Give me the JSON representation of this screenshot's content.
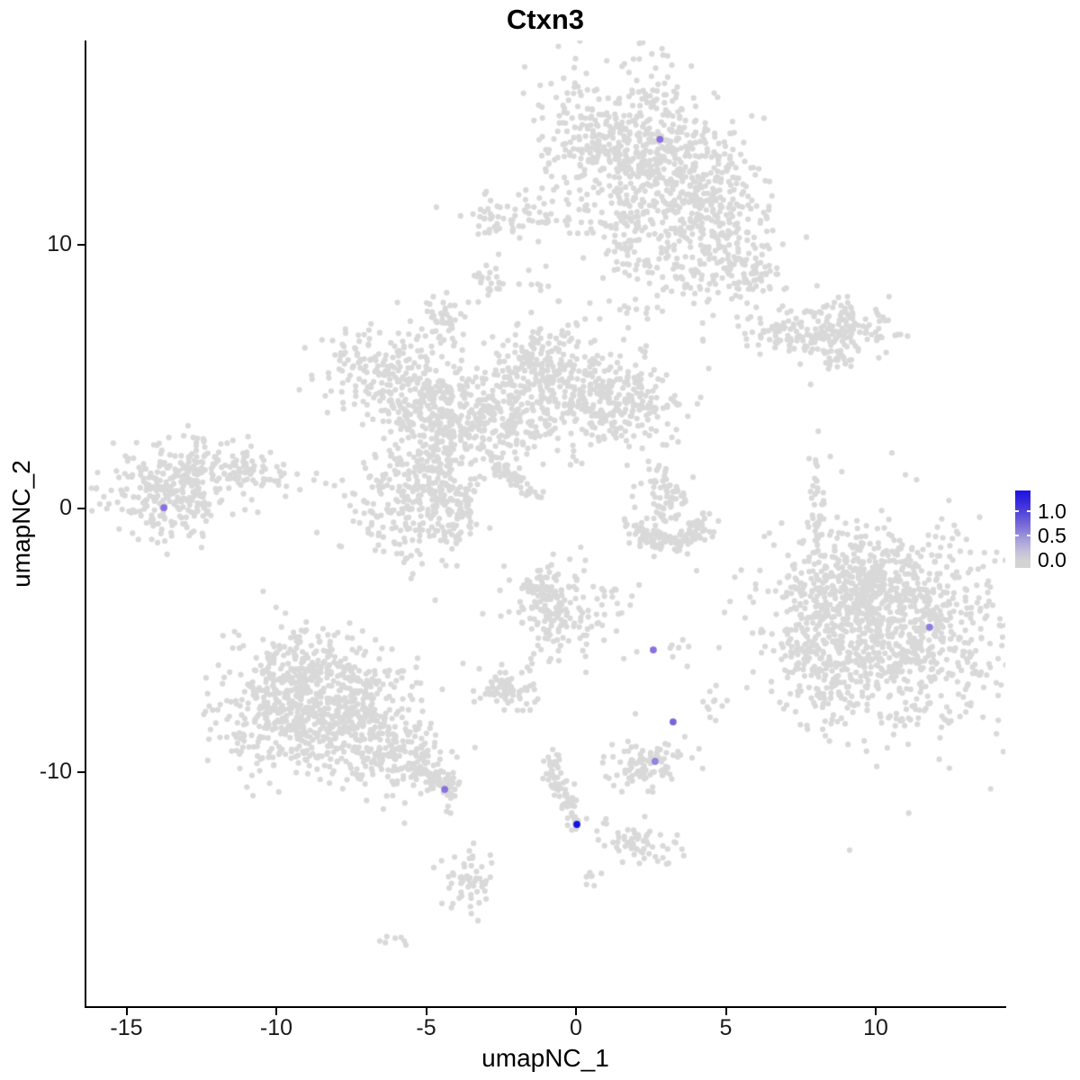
{
  "title": "Ctxn3",
  "axes": {
    "x": {
      "label": "umapNC_1",
      "ticks": [
        -15,
        -10,
        -5,
        0,
        5,
        10
      ]
    },
    "y": {
      "label": "umapNC_2",
      "ticks": [
        10,
        0,
        -10
      ]
    }
  },
  "legend": {
    "labels": [
      "1.0",
      "0.5",
      "0.0"
    ],
    "high_color": "#1d12e3",
    "low_color": "#d3d3d3"
  },
  "colors": {
    "background_point": "#d9d9d9",
    "axis": "#000000"
  },
  "chart_data": {
    "type": "scatter",
    "title": "Ctxn3",
    "xlabel": "umapNC_1",
    "ylabel": "umapNC_2",
    "xlim": [
      -16.3,
      14.3
    ],
    "ylim": [
      -18.8,
      17.8
    ],
    "x_ticks": [
      -15,
      -10,
      -5,
      0,
      5,
      10
    ],
    "y_ticks": [
      10,
      0,
      -10
    ],
    "grid": false,
    "legend_position": "right",
    "legend_scale": {
      "min": 0.0,
      "max": 1.2,
      "breaks": [
        1.0,
        0.5,
        0.0
      ]
    },
    "point_radius_px": 3.1,
    "seed": 7,
    "background_clusters": [
      {
        "type": "gauss",
        "cx": 1.5,
        "cy": 14.0,
        "sx": 1.25,
        "sy": 1.5,
        "n": 420
      },
      {
        "type": "gauss",
        "cx": 3.45,
        "cy": 12.95,
        "sx": 1.0,
        "sy": 1.2,
        "n": 260
      },
      {
        "type": "gauss",
        "cx": 4.65,
        "cy": 11.25,
        "sx": 0.9,
        "sy": 1.05,
        "n": 160
      },
      {
        "type": "gauss",
        "cx": 1.8,
        "cy": 10.25,
        "sx": 0.5,
        "sy": 1.25,
        "n": 90
      },
      {
        "type": "gauss",
        "cx": -1.8,
        "cy": 11.1,
        "sx": 1.15,
        "sy": 0.5,
        "n": 80
      },
      {
        "type": "gauss",
        "cx": 3.15,
        "cy": 9.2,
        "sx": 0.5,
        "sy": 0.8,
        "n": 50
      },
      {
        "type": "gauss",
        "cx": 4.95,
        "cy": 9.4,
        "sx": 0.8,
        "sy": 0.85,
        "n": 90
      },
      {
        "type": "gauss",
        "cx": 5.95,
        "cy": 8.85,
        "sx": 0.45,
        "sy": 0.5,
        "n": 40
      },
      {
        "type": "gauss",
        "cx": -2.9,
        "cy": 8.6,
        "sx": 0.35,
        "sy": 0.3,
        "n": 25
      },
      {
        "type": "gauss",
        "cx": 7.2,
        "cy": 6.65,
        "sx": 1.0,
        "sy": 0.4,
        "n": 85
      },
      {
        "type": "gauss",
        "cx": 9.05,
        "cy": 6.9,
        "sx": 0.95,
        "sy": 0.55,
        "n": 130
      },
      {
        "type": "gauss",
        "cx": 8.65,
        "cy": 5.8,
        "sx": 0.35,
        "sy": 0.22,
        "n": 18
      },
      {
        "type": "gauss",
        "cx": -4.55,
        "cy": 7.2,
        "sx": 0.35,
        "sy": 0.42,
        "n": 45
      },
      {
        "type": "gauss",
        "cx": -6.6,
        "cy": 5.2,
        "sx": 1.05,
        "sy": 0.85,
        "n": 170
      },
      {
        "type": "gauss",
        "cx": -5.35,
        "cy": 4.0,
        "sx": 0.7,
        "sy": 0.5,
        "n": 70
      },
      {
        "type": "gauss",
        "cx": -3.75,
        "cy": 3.5,
        "sx": 1.2,
        "sy": 1.1,
        "n": 240
      },
      {
        "type": "gauss",
        "cx": -1.05,
        "cy": 4.6,
        "sx": 1.35,
        "sy": 1.1,
        "n": 280
      },
      {
        "type": "gauss",
        "cx": 1.5,
        "cy": 4.1,
        "sx": 1.05,
        "sy": 0.9,
        "n": 220
      },
      {
        "type": "gauss",
        "cx": -1.2,
        "cy": 5.8,
        "sx": 0.5,
        "sy": 0.55,
        "n": 60
      },
      {
        "type": "gauss",
        "cx": -4.55,
        "cy": 2.55,
        "sx": 0.42,
        "sy": 1.0,
        "n": 80
      },
      {
        "type": "gauss",
        "cx": -5.4,
        "cy": 0.35,
        "sx": 1.05,
        "sy": 1.2,
        "n": 260
      },
      {
        "type": "gauss",
        "cx": -4.05,
        "cy": 0.15,
        "sx": 0.6,
        "sy": 0.8,
        "n": 80
      },
      {
        "type": "gauss",
        "cx": -2.4,
        "cy": 2.9,
        "sx": 0.8,
        "sy": 0.7,
        "n": 60
      },
      {
        "type": "gauss",
        "cx": -1.35,
        "cy": 8.35,
        "sx": 0.3,
        "sy": 0.55,
        "n": 10
      },
      {
        "type": "gauss",
        "cx": 0.0,
        "cy": 7.0,
        "sx": 0.55,
        "sy": 0.6,
        "n": 8
      },
      {
        "type": "gauss",
        "cx": -13.5,
        "cy": 0.6,
        "sx": 1.1,
        "sy": 0.85,
        "n": 260
      },
      {
        "type": "gauss",
        "cx": -11.85,
        "cy": 1.6,
        "sx": 0.9,
        "sy": 0.5,
        "n": 90
      },
      {
        "type": "gauss",
        "cx": -10.5,
        "cy": 1.25,
        "sx": 0.6,
        "sy": 0.3,
        "n": 25
      },
      {
        "type": "gauss",
        "cx": -9.65,
        "cy": 0.85,
        "sx": 0.55,
        "sy": 0.5,
        "n": 8
      },
      {
        "type": "gauss",
        "cx": 3.05,
        "cy": 0.45,
        "sx": 0.5,
        "sy": 0.55,
        "n": 70
      },
      {
        "type": "gauss",
        "cx": 8.05,
        "cy": 0.0,
        "sx": 0.14,
        "sy": 1.05,
        "n": 45
      },
      {
        "type": "gauss",
        "cx": 10.65,
        "cy": -4.45,
        "sx": 1.9,
        "sy": 1.85,
        "n": 950
      },
      {
        "type": "gauss",
        "cx": 8.55,
        "cy": -5.1,
        "sx": 0.8,
        "sy": 1.6,
        "n": 160
      },
      {
        "type": "gauss",
        "cx": 9.6,
        "cy": -2.9,
        "sx": 1.3,
        "sy": 0.8,
        "n": 180
      },
      {
        "type": "gauss",
        "cx": 7.65,
        "cy": -4.6,
        "sx": 0.5,
        "sy": 1.5,
        "n": 40
      },
      {
        "type": "gauss",
        "cx": -9.0,
        "cy": -6.3,
        "sx": 1.2,
        "sy": 1.0,
        "n": 280
      },
      {
        "type": "gauss",
        "cx": -9.6,
        "cy": -8.2,
        "sx": 1.2,
        "sy": 1.0,
        "n": 260
      },
      {
        "type": "gauss",
        "cx": -7.8,
        "cy": -7.5,
        "sx": 1.3,
        "sy": 1.1,
        "n": 260
      },
      {
        "type": "gauss",
        "cx": -6.45,
        "cy": -9.0,
        "sx": 1.1,
        "sy": 0.8,
        "n": 180
      },
      {
        "type": "gauss",
        "cx": -0.45,
        "cy": -3.9,
        "sx": 1.0,
        "sy": 0.9,
        "n": 170
      },
      {
        "type": "gauss",
        "cx": -1.2,
        "cy": -3.05,
        "sx": 0.4,
        "sy": 0.4,
        "n": 40
      },
      {
        "type": "gauss",
        "cx": -2.45,
        "cy": -6.85,
        "sx": 0.55,
        "sy": 0.4,
        "n": 70
      },
      {
        "type": "gauss",
        "cx": 2.35,
        "cy": -9.65,
        "sx": 0.7,
        "sy": 0.45,
        "n": 90
      },
      {
        "type": "gauss",
        "cx": 2.1,
        "cy": -12.7,
        "sx": 0.55,
        "sy": 0.35,
        "n": 60
      },
      {
        "type": "gauss",
        "cx": -3.6,
        "cy": -14.2,
        "sx": 0.45,
        "sy": 0.6,
        "n": 55
      },
      {
        "type": "gauss",
        "cx": 0.55,
        "cy": -14.2,
        "sx": 0.15,
        "sy": 0.3,
        "n": 8
      },
      {
        "type": "gauss",
        "cx": -6.05,
        "cy": -16.3,
        "sx": 0.3,
        "sy": 0.15,
        "n": 7
      },
      {
        "type": "gauss",
        "cx": 4.8,
        "cy": -7.35,
        "sx": 0.3,
        "sy": 0.3,
        "n": 10
      },
      {
        "type": "gauss",
        "cx": 3.3,
        "cy": -5.3,
        "sx": 0.4,
        "sy": 0.22,
        "n": 6
      },
      {
        "type": "gauss",
        "cx": 0.65,
        "cy": -12.05,
        "sx": 0.35,
        "sy": 0.12,
        "n": 6
      },
      {
        "type": "gauss",
        "cx": 3.99,
        "cy": -2.3,
        "sx": 0.05,
        "sy": 0.05,
        "n": 1
      },
      {
        "type": "gauss",
        "cx": 7.8,
        "cy": 4.65,
        "sx": 0.05,
        "sy": 0.05,
        "n": 1
      },
      {
        "type": "gauss",
        "cx": -4.15,
        "cy": -11.6,
        "sx": 0.15,
        "sy": 0.1,
        "n": 3
      },
      {
        "type": "path",
        "pts": [
          [
            1.8,
            -0.5
          ],
          [
            2.4,
            -1.15
          ],
          [
            3.2,
            -1.3
          ],
          [
            4.0,
            -0.95
          ],
          [
            4.35,
            -0.6
          ]
        ],
        "n": 120,
        "w": 0.22
      },
      {
        "type": "path",
        "pts": [
          [
            -2.8,
            1.8
          ],
          [
            -1.25,
            0.35
          ]
        ],
        "n": 55,
        "w": 0.13
      },
      {
        "type": "path",
        "pts": [
          [
            -5.6,
            -9.6
          ],
          [
            -4.6,
            -10.35
          ],
          [
            -4.05,
            -10.65
          ]
        ],
        "n": 100,
        "w": 0.28
      },
      {
        "type": "path",
        "pts": [
          [
            -0.85,
            -9.3
          ],
          [
            -0.6,
            -10.3
          ],
          [
            -0.2,
            -11.3
          ],
          [
            0.05,
            -12.0
          ]
        ],
        "n": 70,
        "w": 0.16
      }
    ],
    "highlighted_points": [
      {
        "x": 2.8,
        "y": 14.0,
        "value": 0.6,
        "color": "#8a6fdf"
      },
      {
        "x": -13.75,
        "y": 0.03,
        "value": 0.6,
        "color": "#8a6fdf"
      },
      {
        "x": 11.8,
        "y": -4.5,
        "value": 0.55,
        "color": "#8f7ce2"
      },
      {
        "x": 2.58,
        "y": -5.36,
        "value": 0.6,
        "color": "#8a6fdf"
      },
      {
        "x": 3.24,
        "y": -8.09,
        "value": 0.65,
        "color": "#7d63dc"
      },
      {
        "x": 2.64,
        "y": -9.59,
        "value": 0.5,
        "color": "#9383de"
      },
      {
        "x": -4.38,
        "y": -10.65,
        "value": 0.6,
        "color": "#8a6fdf"
      },
      {
        "x": 0.03,
        "y": -11.98,
        "value": 1.2,
        "color": "#1414e0"
      }
    ]
  }
}
